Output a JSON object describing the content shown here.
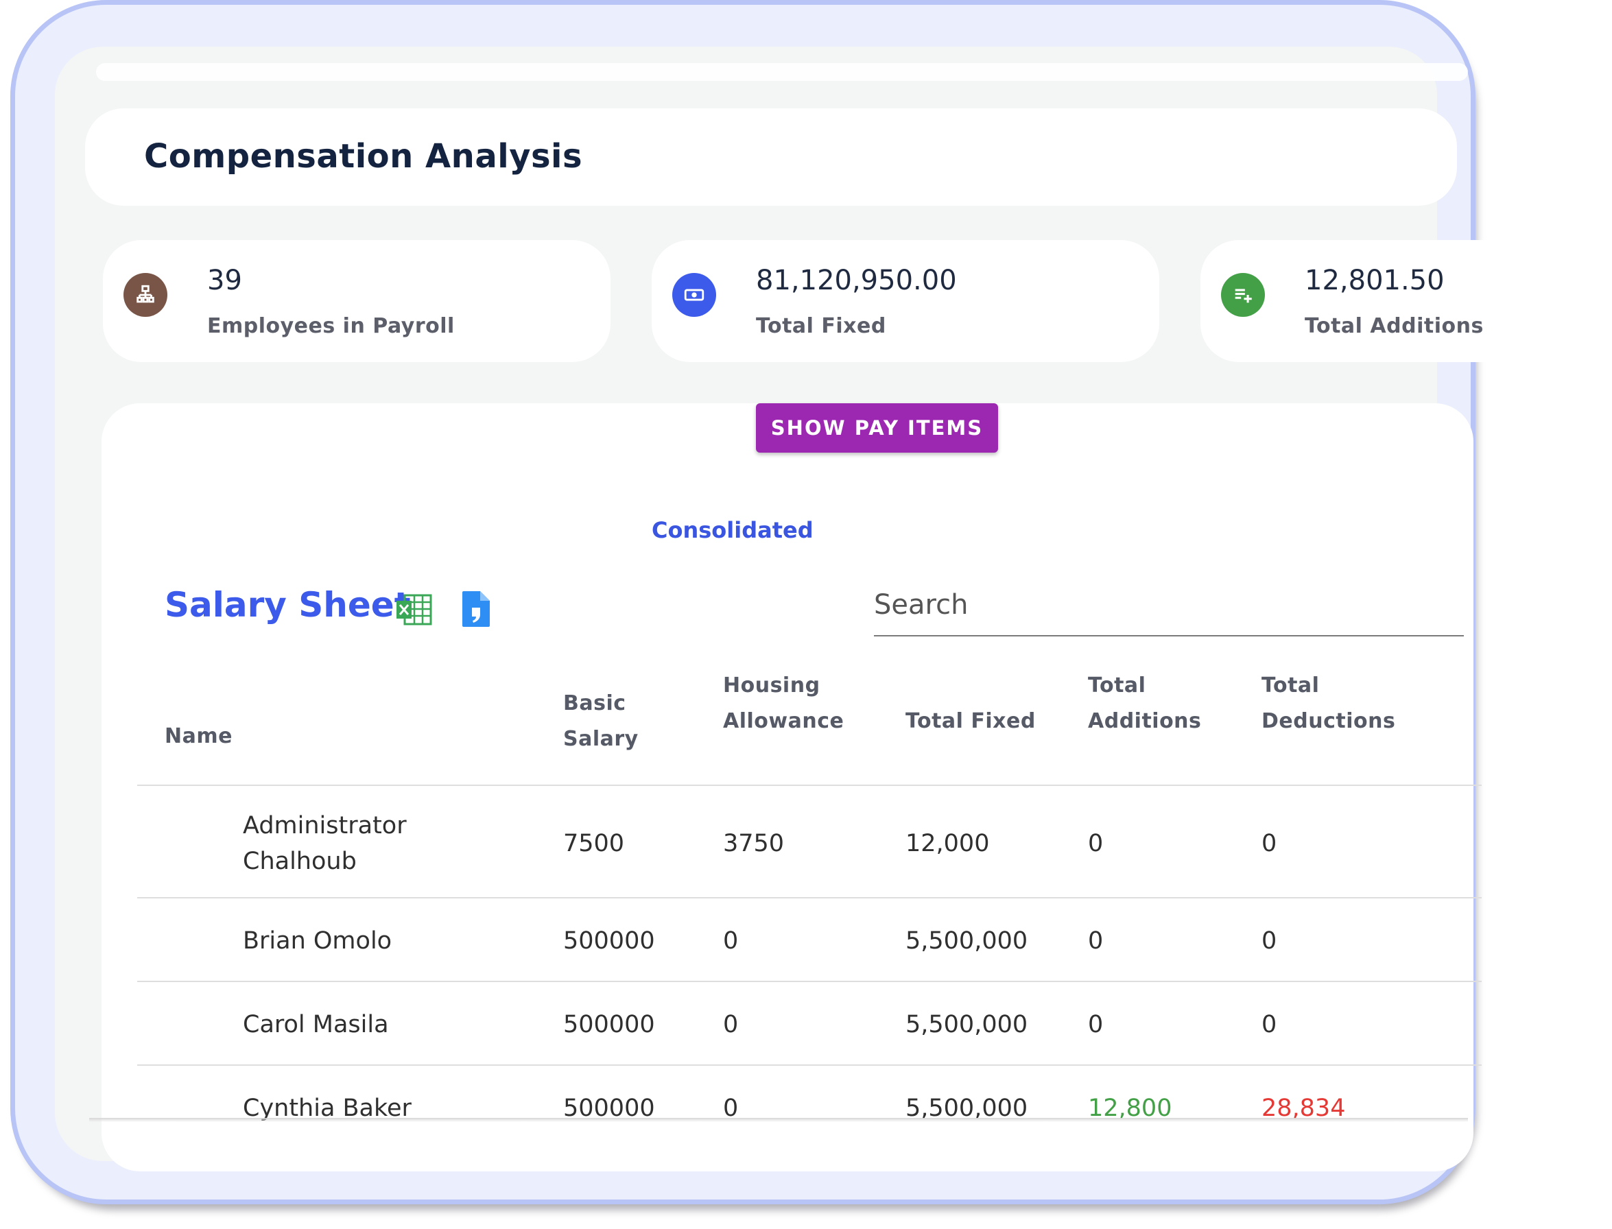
{
  "page": {
    "title": "Compensation Analysis"
  },
  "stats": [
    {
      "value": "39",
      "label": "Employees in Payroll",
      "icon": "org-chart-icon",
      "color": "#795548"
    },
    {
      "value": "81,120,950.00",
      "label": "Total Fixed",
      "icon": "money-icon",
      "color": "#3d5bea"
    },
    {
      "value": "12,801.50",
      "label": "Total Additions",
      "icon": "add-list-icon",
      "color": "#43a047"
    }
  ],
  "actions": {
    "show_pay_items": "SHOW PAY ITEMS"
  },
  "view": {
    "consolidated": "Consolidated"
  },
  "sheet": {
    "title": "Salary Sheet",
    "export_excel_icon": "excel-icon",
    "export_doc_icon": "document-icon",
    "search_placeholder": "Search"
  },
  "table": {
    "headers": [
      "Name",
      "Basic Salary",
      "Housing Allowance",
      "Total Fixed",
      "Total Additions",
      "Total Deductions"
    ],
    "rows": [
      {
        "name": "Administrator Chalhoub",
        "basic": "7500",
        "housing": "3750",
        "fixed": "12,000",
        "additions": "0",
        "deductions": "0"
      },
      {
        "name": "Brian Omolo",
        "basic": "500000",
        "housing": "0",
        "fixed": "5,500,000",
        "additions": "0",
        "deductions": "0"
      },
      {
        "name": "Carol Masila",
        "basic": "500000",
        "housing": "0",
        "fixed": "5,500,000",
        "additions": "0",
        "deductions": "0"
      },
      {
        "name": "Cynthia Baker",
        "basic": "500000",
        "housing": "0",
        "fixed": "5,500,000",
        "additions": "12,800",
        "deductions": "28,834"
      }
    ],
    "colors": {
      "positive": "#43a047",
      "negative": "#e53935"
    }
  }
}
